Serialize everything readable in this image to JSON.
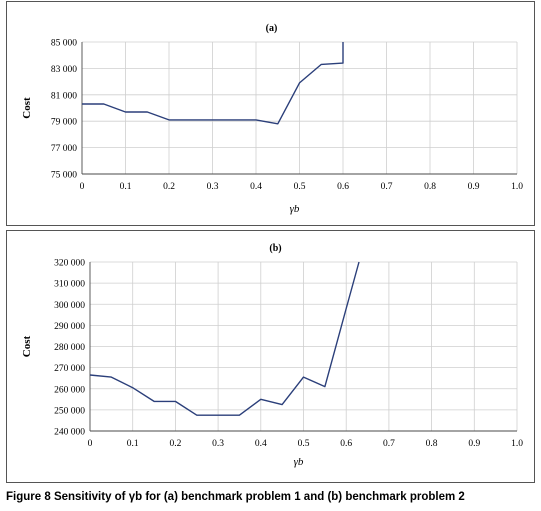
{
  "caption": {
    "label": "Figure 8",
    "text": "Sensitivity of γb for (a) benchmark problem 1 and (b) benchmark problem 2"
  },
  "chart_data": [
    {
      "type": "line",
      "title": "(a)",
      "xlabel": "γb",
      "ylabel": "Cost",
      "xlim": [
        0,
        1
      ],
      "ylim": [
        75000,
        85000
      ],
      "x_ticks": [
        "0",
        "0.1",
        "0.2",
        "0.3",
        "0.4",
        "0.5",
        "0.6",
        "0.7",
        "0.8",
        "0.9",
        "1.0"
      ],
      "y_ticks": [
        "75 000",
        "77 000",
        "79 000",
        "81 000",
        "83 000",
        "85 000"
      ],
      "grid": true,
      "color": "#2b3f7a",
      "series": [
        {
          "x": [
            0,
            0.05,
            0.1,
            0.15,
            0.2,
            0.25,
            0.3,
            0.35,
            0.4,
            0.45,
            0.5,
            0.55,
            0.6,
            0.6
          ],
          "y": [
            80300,
            80300,
            79700,
            79700,
            79100,
            79100,
            79100,
            79100,
            79100,
            78800,
            81900,
            83300,
            83400,
            85000
          ]
        }
      ]
    },
    {
      "type": "line",
      "title": "(b)",
      "xlabel": "γb",
      "ylabel": "Cost",
      "xlim": [
        0,
        1
      ],
      "ylim": [
        240000,
        320000
      ],
      "x_ticks": [
        "0",
        "0.1",
        "0.2",
        "0.3",
        "0.4",
        "0.5",
        "0.6",
        "0.7",
        "0.8",
        "0.9",
        "1.0"
      ],
      "y_ticks": [
        "240 000",
        "250 000",
        "260 000",
        "270 000",
        "280 000",
        "290 000",
        "300 000",
        "310 000",
        "320 000"
      ],
      "grid": true,
      "color": "#2b3f7a",
      "series": [
        {
          "x": [
            0,
            0.05,
            0.1,
            0.15,
            0.2,
            0.25,
            0.3,
            0.35,
            0.4,
            0.45,
            0.5,
            0.55,
            0.6,
            0.63
          ],
          "y": [
            266500,
            265500,
            260500,
            254000,
            254000,
            247500,
            247500,
            247500,
            255000,
            252500,
            265500,
            261000,
            298000,
            320000
          ]
        }
      ]
    }
  ]
}
